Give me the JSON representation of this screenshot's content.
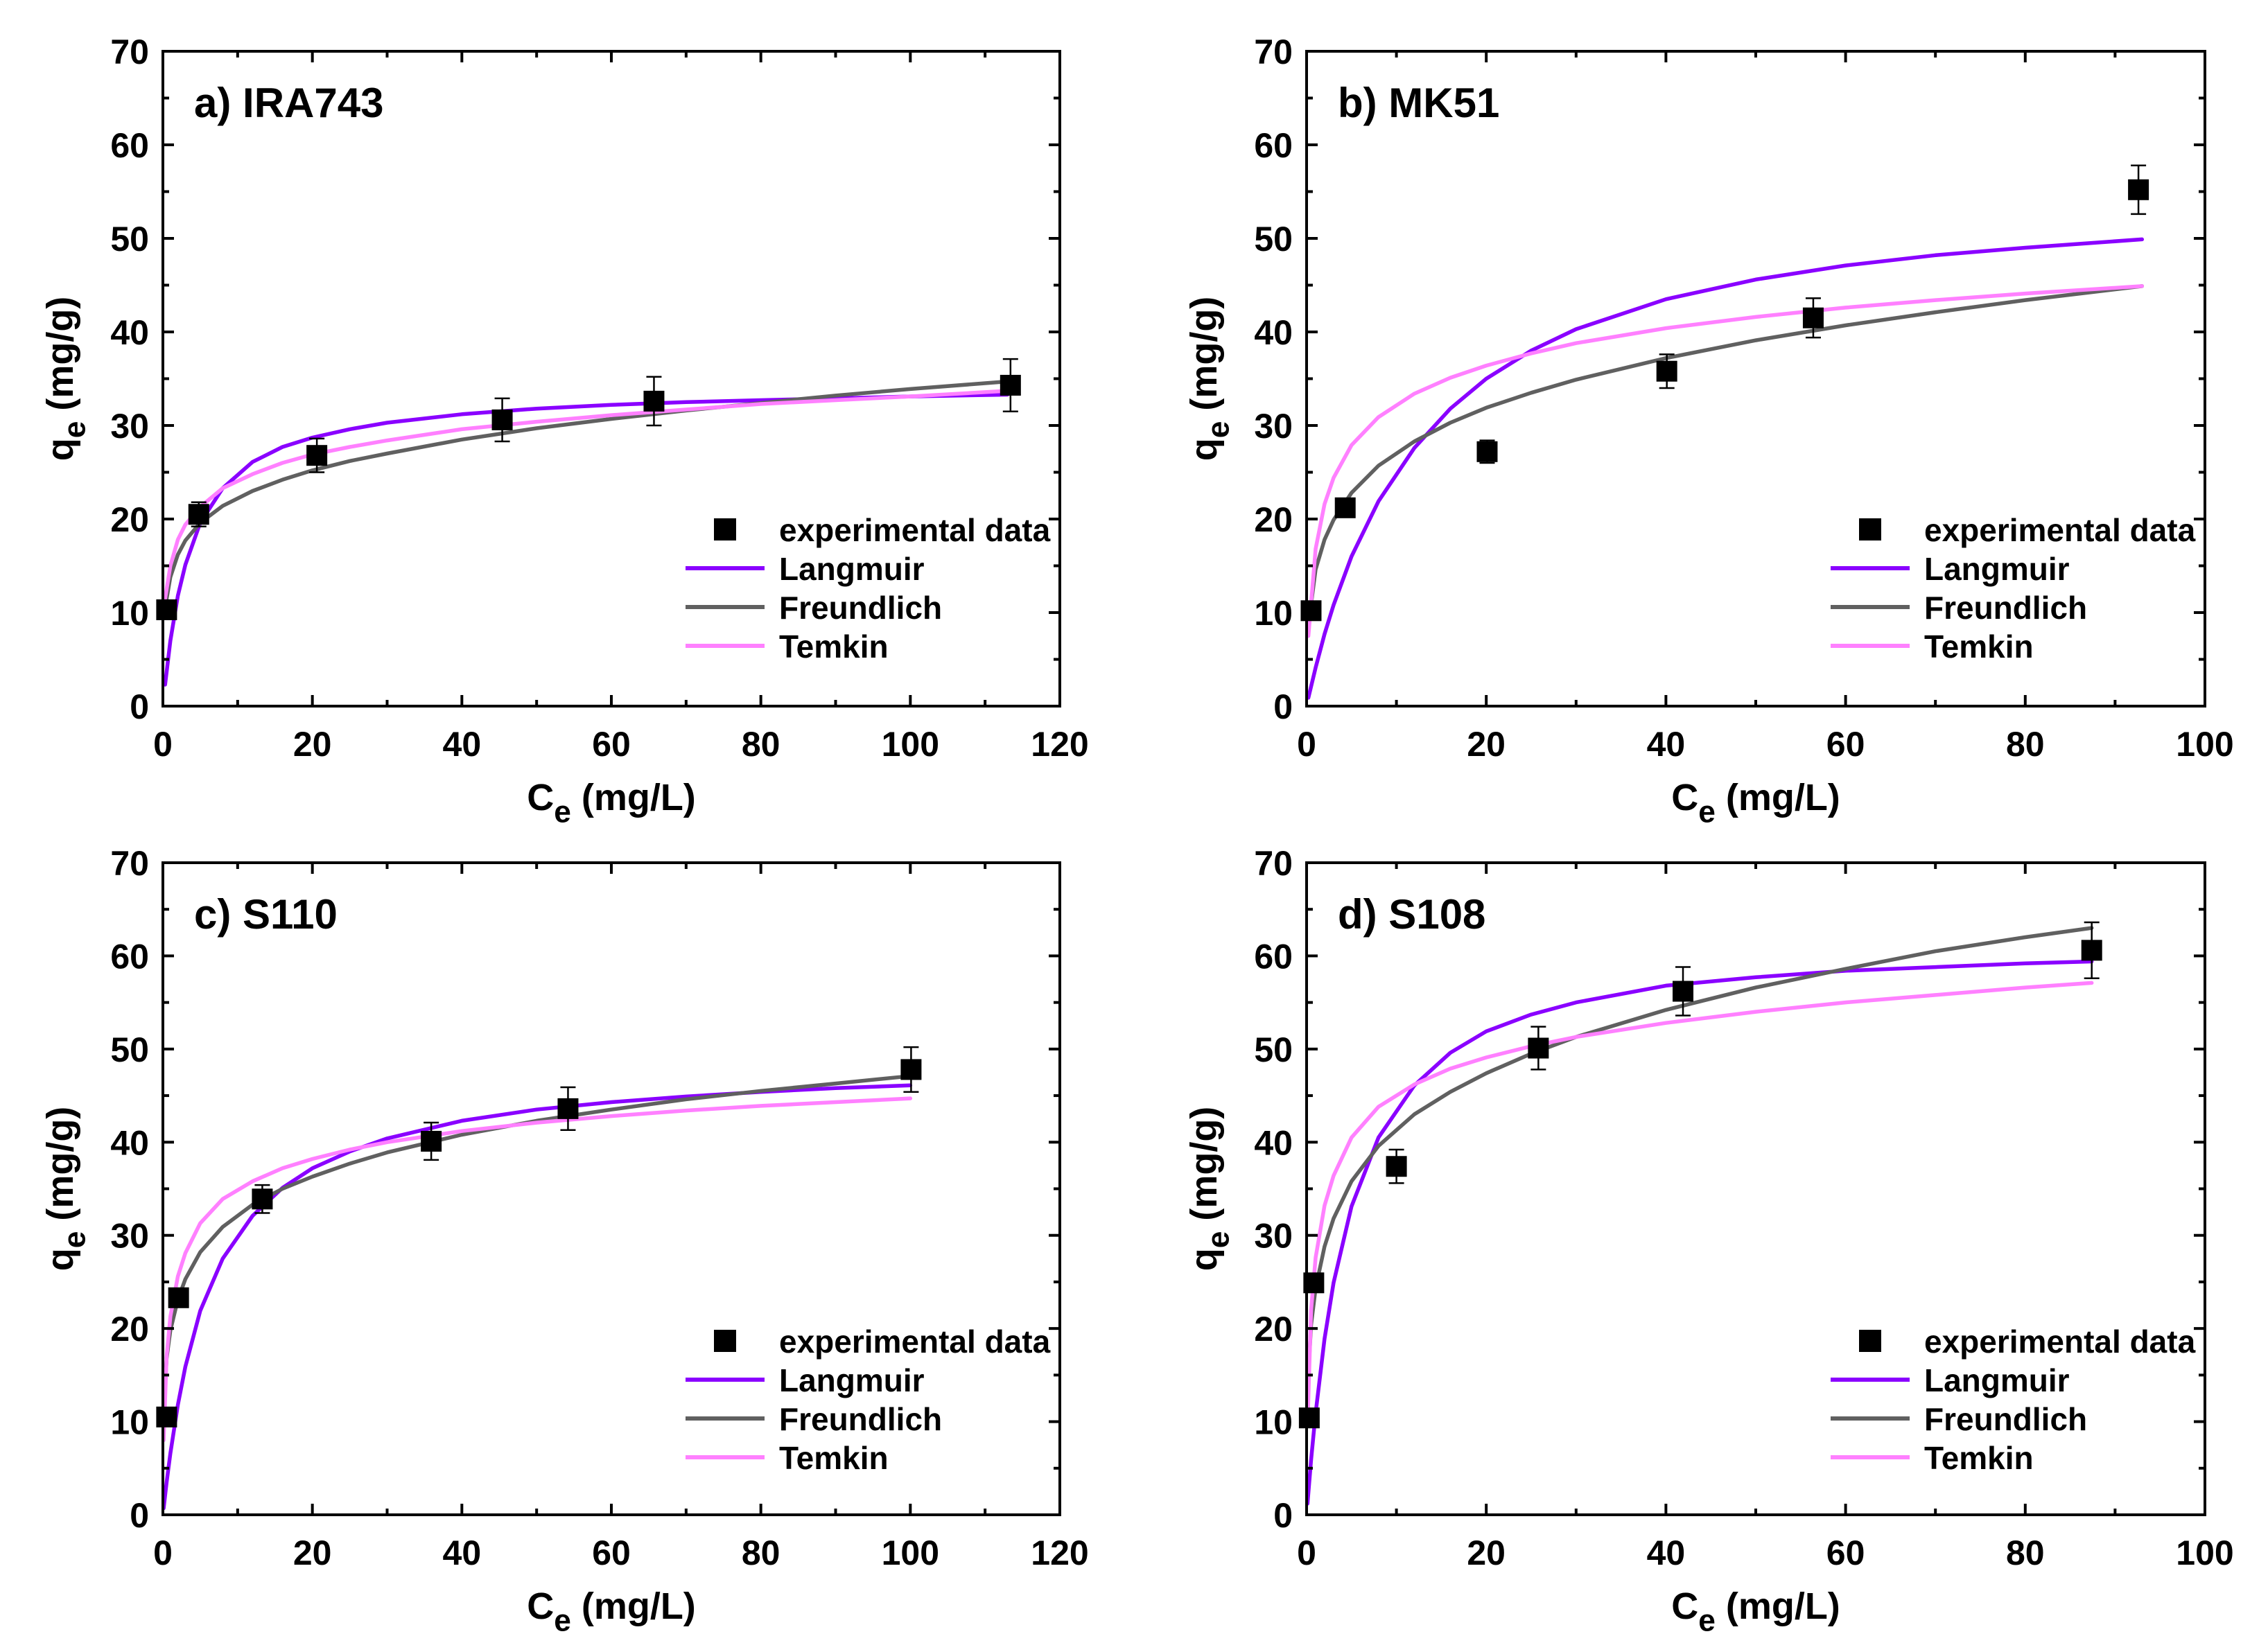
{
  "figure": {
    "series_colors": {
      "experimental data": "#000000",
      "Langmuir": "#8a00ff",
      "Freundlich": "#606060",
      "Temkin": "#ff80ff"
    }
  },
  "chart_data": [
    {
      "type": "scatter",
      "panel": "a",
      "title": "a) IRA743",
      "xlabel": "Ce (mg/L)",
      "ylabel": "qe (mg/g)",
      "xlim": [
        0,
        120
      ],
      "ylim": [
        0,
        70
      ],
      "xticks": [
        0,
        20,
        40,
        60,
        80,
        100,
        120
      ],
      "yticks": [
        0,
        10,
        20,
        30,
        40,
        50,
        60,
        70
      ],
      "legend_position": "right-middle",
      "series": [
        {
          "name": "experimental data",
          "kind": "points",
          "x": [
            0.5,
            4.8,
            20.6,
            45.4,
            65.7,
            113.4
          ],
          "y": [
            10.3,
            20.5,
            26.8,
            30.6,
            32.6,
            34.3
          ],
          "err": [
            0.8,
            1.3,
            1.8,
            2.3,
            2.6,
            2.8
          ]
        },
        {
          "name": "Langmuir",
          "kind": "curve",
          "x": [
            0.3,
            1,
            2,
            3,
            5,
            8,
            12,
            16,
            20,
            25,
            30,
            40,
            50,
            60,
            70,
            80,
            90,
            100,
            113
          ],
          "y": [
            2.3,
            7.0,
            11.8,
            15.1,
            19.6,
            23.3,
            26.1,
            27.7,
            28.7,
            29.6,
            30.3,
            31.2,
            31.8,
            32.2,
            32.5,
            32.7,
            32.9,
            33.1,
            33.3
          ]
        },
        {
          "name": "Freundlich",
          "kind": "curve",
          "x": [
            0.3,
            1,
            2,
            3,
            5,
            8,
            12,
            16,
            20,
            25,
            30,
            40,
            50,
            60,
            70,
            80,
            90,
            100,
            113
          ],
          "y": [
            10.5,
            13.8,
            16.2,
            17.7,
            19.6,
            21.4,
            23.0,
            24.2,
            25.2,
            26.2,
            27.0,
            28.5,
            29.7,
            30.7,
            31.6,
            32.4,
            33.2,
            33.9,
            34.7
          ]
        },
        {
          "name": "Temkin",
          "kind": "curve",
          "x": [
            0.3,
            1,
            2,
            3,
            5,
            8,
            12,
            16,
            20,
            25,
            30,
            40,
            50,
            60,
            70,
            80,
            90,
            100,
            113
          ],
          "y": [
            11.5,
            15.0,
            17.8,
            19.4,
            21.3,
            23.3,
            24.8,
            26.0,
            26.9,
            27.7,
            28.4,
            29.6,
            30.4,
            31.1,
            31.7,
            32.3,
            32.7,
            33.1,
            33.7
          ]
        }
      ]
    },
    {
      "type": "scatter",
      "panel": "b",
      "title": "b) MK51",
      "xlabel": "Ce (mg/L)",
      "ylabel": "qe (mg/g)",
      "xlim": [
        0,
        100
      ],
      "ylim": [
        0,
        70
      ],
      "xticks": [
        0,
        20,
        40,
        60,
        80,
        100
      ],
      "yticks": [
        0,
        10,
        20,
        30,
        40,
        50,
        60,
        70
      ],
      "legend_position": "right-middle",
      "series": [
        {
          "name": "experimental data",
          "kind": "points",
          "x": [
            0.5,
            4.3,
            20.1,
            40.1,
            56.4,
            92.6
          ],
          "y": [
            10.2,
            21.2,
            27.2,
            35.8,
            41.5,
            55.2
          ],
          "err": [
            0.8,
            1.0,
            1.2,
            1.8,
            2.1,
            2.6
          ]
        },
        {
          "name": "Langmuir",
          "kind": "curve",
          "x": [
            0.2,
            1,
            2,
            3,
            5,
            8,
            12,
            16,
            20,
            25,
            30,
            40,
            50,
            60,
            70,
            80,
            93
          ],
          "y": [
            0.9,
            4.1,
            7.7,
            10.8,
            16.0,
            21.9,
            27.6,
            31.8,
            35.0,
            38.0,
            40.3,
            43.5,
            45.6,
            47.1,
            48.2,
            49.0,
            49.9
          ]
        },
        {
          "name": "Freundlich",
          "kind": "curve",
          "x": [
            0.2,
            1,
            2,
            3,
            5,
            8,
            12,
            16,
            20,
            25,
            30,
            40,
            50,
            60,
            70,
            80,
            93
          ],
          "y": [
            8.7,
            14.6,
            17.8,
            19.9,
            22.8,
            25.7,
            28.3,
            30.3,
            31.9,
            33.5,
            34.9,
            37.2,
            39.1,
            40.7,
            42.1,
            43.4,
            44.9
          ]
        },
        {
          "name": "Temkin",
          "kind": "curve",
          "x": [
            0.2,
            1,
            2,
            3,
            5,
            8,
            12,
            16,
            20,
            25,
            30,
            40,
            50,
            60,
            70,
            80,
            93
          ],
          "y": [
            7.5,
            16.8,
            21.6,
            24.4,
            27.9,
            30.9,
            33.4,
            35.1,
            36.4,
            37.7,
            38.8,
            40.4,
            41.6,
            42.6,
            43.4,
            44.1,
            44.9
          ]
        }
      ]
    },
    {
      "type": "scatter",
      "panel": "c",
      "title": "c) S110",
      "xlabel": "Ce (mg/L)",
      "ylabel": "qe (mg/g)",
      "xlim": [
        0,
        120
      ],
      "ylim": [
        0,
        70
      ],
      "xticks": [
        0,
        20,
        40,
        60,
        80,
        100,
        120
      ],
      "yticks": [
        0,
        10,
        20,
        30,
        40,
        50,
        60,
        70
      ],
      "legend_position": "right-middle",
      "series": [
        {
          "name": "experimental data",
          "kind": "points",
          "x": [
            0.5,
            2.1,
            13.3,
            35.9,
            54.2,
            100.1
          ],
          "y": [
            10.5,
            23.3,
            33.9,
            40.1,
            43.6,
            47.8
          ],
          "err": [
            0.8,
            1.0,
            1.5,
            2.0,
            2.3,
            2.4
          ]
        },
        {
          "name": "Langmuir",
          "kind": "curve",
          "x": [
            0.1,
            0.5,
            1,
            2,
            3,
            5,
            8,
            12,
            16,
            20,
            25,
            30,
            40,
            50,
            60,
            70,
            80,
            90,
            100
          ],
          "y": [
            0.7,
            3.5,
            6.6,
            11.8,
            15.9,
            21.9,
            27.5,
            32.1,
            35.1,
            37.2,
            39.0,
            40.4,
            42.3,
            43.5,
            44.3,
            44.9,
            45.4,
            45.8,
            46.1
          ]
        },
        {
          "name": "Freundlich",
          "kind": "curve",
          "x": [
            0.1,
            0.5,
            1,
            2,
            3,
            5,
            8,
            12,
            16,
            20,
            25,
            30,
            40,
            50,
            60,
            70,
            80,
            90,
            100
          ],
          "y": [
            11.0,
            16.8,
            19.8,
            23.1,
            25.3,
            28.2,
            30.9,
            33.3,
            35.0,
            36.3,
            37.7,
            38.9,
            40.8,
            42.3,
            43.5,
            44.6,
            45.5,
            46.3,
            47.1
          ]
        },
        {
          "name": "Temkin",
          "kind": "curve",
          "x": [
            0.1,
            0.5,
            1,
            2,
            3,
            5,
            8,
            12,
            16,
            20,
            25,
            30,
            40,
            50,
            60,
            70,
            80,
            90,
            100
          ],
          "y": [
            8.0,
            17.0,
            21.3,
            25.6,
            28.1,
            31.3,
            33.9,
            35.8,
            37.2,
            38.2,
            39.2,
            40.0,
            41.2,
            42.1,
            42.8,
            43.4,
            43.9,
            44.3,
            44.7
          ]
        }
      ]
    },
    {
      "type": "scatter",
      "panel": "d",
      "title": "d) S108",
      "xlabel": "Ce (mg/L)",
      "ylabel": "qe (mg/g)",
      "xlim": [
        0,
        100
      ],
      "ylim": [
        0,
        70
      ],
      "xticks": [
        0,
        20,
        40,
        60,
        80,
        100
      ],
      "yticks": [
        0,
        10,
        20,
        30,
        40,
        50,
        60,
        70
      ],
      "legend_position": "right-middle",
      "series": [
        {
          "name": "experimental data",
          "kind": "points",
          "x": [
            0.3,
            0.8,
            10.0,
            25.8,
            41.9,
            87.4
          ],
          "y": [
            10.4,
            24.9,
            37.4,
            50.1,
            56.2,
            60.6
          ],
          "err": [
            0.5,
            0.8,
            1.8,
            2.3,
            2.6,
            3.0
          ]
        },
        {
          "name": "Langmuir",
          "kind": "curve",
          "x": [
            0.1,
            0.5,
            1,
            2,
            3,
            5,
            8,
            12,
            16,
            20,
            25,
            30,
            40,
            50,
            60,
            70,
            80,
            87.4
          ],
          "y": [
            1.2,
            5.9,
            10.9,
            18.9,
            24.9,
            33.1,
            40.5,
            46.1,
            49.6,
            51.9,
            53.7,
            55.0,
            56.8,
            57.7,
            58.4,
            58.8,
            59.2,
            59.4
          ]
        },
        {
          "name": "Freundlich",
          "kind": "curve",
          "x": [
            0.1,
            0.5,
            1,
            2,
            3,
            5,
            8,
            12,
            16,
            20,
            25,
            30,
            40,
            50,
            60,
            70,
            80,
            87.4
          ],
          "y": [
            13.5,
            20.4,
            24.3,
            28.8,
            31.8,
            35.8,
            39.6,
            43.0,
            45.4,
            47.4,
            49.5,
            51.3,
            54.2,
            56.6,
            58.6,
            60.5,
            62.0,
            63.0
          ]
        },
        {
          "name": "Temkin",
          "kind": "curve",
          "x": [
            0.1,
            0.5,
            1,
            2,
            3,
            5,
            8,
            12,
            16,
            20,
            25,
            30,
            40,
            50,
            60,
            70,
            80,
            87.4
          ],
          "y": [
            9.5,
            22.0,
            27.6,
            33.2,
            36.4,
            40.5,
            43.8,
            46.2,
            47.9,
            49.1,
            50.3,
            51.3,
            52.8,
            54.0,
            55.0,
            55.8,
            56.6,
            57.1
          ]
        }
      ]
    }
  ]
}
